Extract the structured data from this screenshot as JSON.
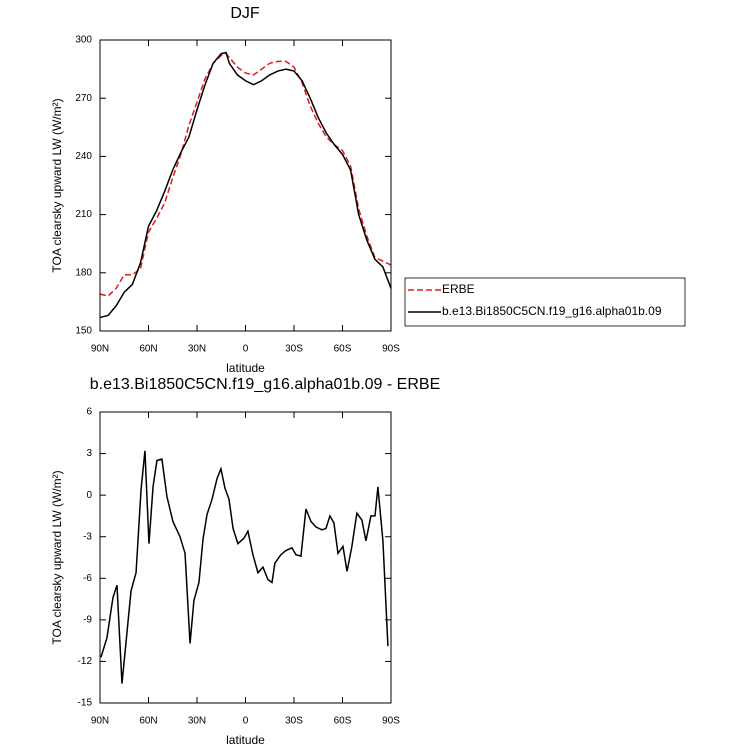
{
  "chart_data": [
    {
      "type": "line",
      "title": "DJF",
      "xlabel": "latitude",
      "ylabel": "TOA clearsky upward LW (W/m²)",
      "x": [
        90,
        85,
        80,
        75,
        70,
        65,
        60,
        55,
        50,
        45,
        40,
        35,
        30,
        25,
        20,
        15,
        12,
        10,
        5,
        0,
        -5,
        -10,
        -15,
        -20,
        -25,
        -30,
        -35,
        -40,
        -45,
        -50,
        -55,
        -60,
        -65,
        -70,
        -75,
        -80,
        -85,
        -90
      ],
      "series": [
        {
          "name": "ERBE",
          "color": "#e41a1c",
          "line_style": "dashed",
          "values": [
            169,
            168,
            172,
            179,
            179,
            182,
            201,
            208,
            216,
            229,
            241,
            256,
            268,
            280,
            288,
            292,
            293,
            291,
            286,
            283,
            282,
            285,
            288,
            289,
            289,
            286,
            278,
            266,
            257,
            250,
            246,
            243,
            235,
            213,
            199,
            188,
            186,
            184
          ]
        },
        {
          "name": "b.e13.Bi1850C5CN.f19_g16.alpha01b.09",
          "color": "#000000",
          "line_style": "solid",
          "values": [
            157,
            158,
            163,
            170,
            174,
            185,
            204,
            212,
            222,
            233,
            242,
            250,
            264,
            277,
            288,
            293,
            293.5,
            288,
            282,
            279,
            277,
            279,
            282,
            284,
            285,
            284,
            279,
            270,
            260,
            252,
            246,
            241,
            233,
            210,
            197,
            187,
            183,
            172
          ]
        }
      ],
      "xlim": [
        90,
        -90
      ],
      "xticks": [
        {
          "value": 90,
          "label": "90N"
        },
        {
          "value": 60,
          "label": "60N"
        },
        {
          "value": 30,
          "label": "30N"
        },
        0,
        {
          "value": -30,
          "label": "30S"
        },
        {
          "value": -60,
          "label": "60S"
        },
        {
          "value": -90,
          "label": "90S"
        }
      ],
      "ylim": [
        150,
        300
      ],
      "yticks": [
        150,
        180,
        210,
        240,
        270,
        300
      ],
      "legend": "right"
    },
    {
      "type": "line",
      "title": "b.e13.Bi1850C5CN.f19_g16.alpha01b.09 - ERBE",
      "xlabel": "latitude",
      "ylabel": "TOA clearsky upward LW (W/m²)",
      "x": [
        89.4,
        85.7,
        82.0,
        79.5,
        76.4,
        70.8,
        67.7,
        64.6,
        62.2,
        59.7,
        57.2,
        54.8,
        51.7,
        48.6,
        44.9,
        40.5,
        37.4,
        34.3,
        31.9,
        28.8,
        26.3,
        23.8,
        20.7,
        17.6,
        15.2,
        12.7,
        10.2,
        7.7,
        4.7,
        0.9,
        -1.5,
        -4.6,
        -7.7,
        -10.8,
        -13.9,
        -16.4,
        -18.2,
        -21.9,
        -25.0,
        -28.7,
        -31.2,
        -34.3,
        -37.4,
        -40.5,
        -43.6,
        -47.3,
        -49.8,
        -52.2,
        -54.7,
        -57.2,
        -60.3,
        -62.8,
        -65.8,
        -68.9,
        -72.0,
        -74.5,
        -77.6,
        -80.1,
        -81.9,
        -85.0,
        -88.1
      ],
      "values": [
        -11.7,
        -10.3,
        -7.4,
        -6.5,
        -13.6,
        -6.9,
        -5.6,
        0.4,
        3.2,
        -3.5,
        0.6,
        2.5,
        2.6,
        -0.1,
        -1.9,
        -3.0,
        -4.2,
        -10.7,
        -7.6,
        -6.3,
        -3.2,
        -1.4,
        -0.3,
        1.2,
        1.9,
        0.5,
        -0.3,
        -2.4,
        -3.5,
        -3.1,
        -2.6,
        -4.3,
        -5.6,
        -5.2,
        -6.1,
        -6.3,
        -4.9,
        -4.3,
        -4.0,
        -3.8,
        -4.3,
        -4.4,
        -1.0,
        -1.9,
        -2.3,
        -2.5,
        -2.4,
        -1.5,
        -2.0,
        -4.2,
        -3.7,
        -5.5,
        -3.7,
        -1.3,
        -1.8,
        -3.3,
        -1.5,
        -1.5,
        0.6,
        -3.3,
        -10.9
      ],
      "color": "#000000",
      "xlim": [
        90,
        -90
      ],
      "xticks": [
        {
          "value": 90,
          "label": "90N"
        },
        {
          "value": 60,
          "label": "60N"
        },
        {
          "value": 30,
          "label": "30N"
        },
        0,
        {
          "value": -30,
          "label": "30S"
        },
        {
          "value": -60,
          "label": "60S"
        },
        {
          "value": -90,
          "label": "90S"
        }
      ],
      "ylim": [
        -15,
        6
      ],
      "yticks": [
        -15,
        -12,
        -9,
        -6,
        -3,
        0,
        3,
        6
      ]
    }
  ]
}
